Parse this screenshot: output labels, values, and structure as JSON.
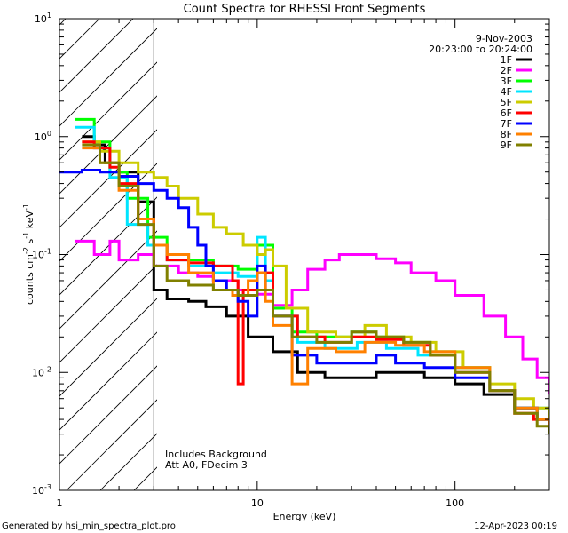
{
  "chart_data": {
    "type": "line",
    "title": "Count Spectra for RHESSI Front Segments",
    "xlabel": "Energy (keV)",
    "ylabel_parts": [
      "counts cm",
      "-2",
      " s",
      "-1",
      " keV",
      "-1"
    ],
    "xscale": "log",
    "yscale": "log",
    "xlim": [
      1,
      300
    ],
    "ylim": [
      0.001,
      10
    ],
    "x_ticks": [
      {
        "value": 1,
        "label": "1"
      },
      {
        "value": 10,
        "label": "10"
      },
      {
        "value": 100,
        "label": "100"
      }
    ],
    "y_ticks": [
      {
        "value": 0.001,
        "base": "10",
        "exp": "-3"
      },
      {
        "value": 0.01,
        "base": "10",
        "exp": "-2"
      },
      {
        "value": 0.1,
        "base": "10",
        "exp": "-1"
      },
      {
        "value": 1,
        "base": "10",
        "exp": "0"
      },
      {
        "value": 10,
        "base": "10",
        "exp": "1"
      }
    ],
    "date": "9-Nov-2003",
    "time_range": "20:23:00 to 20:24:00",
    "hatched_region_keV": [
      1,
      3
    ],
    "vertical_line_keV": 3,
    "annotations": [
      "Includes Background",
      "Att A0, FDecim 3"
    ],
    "series": [
      {
        "name": "1F",
        "color": "#000000",
        "points": [
          [
            1.3,
            1.0
          ],
          [
            1.5,
            0.85
          ],
          [
            1.7,
            0.6
          ],
          [
            2.0,
            0.5
          ],
          [
            2.5,
            0.28
          ],
          [
            3.0,
            0.05
          ],
          [
            3.5,
            0.042
          ],
          [
            4.5,
            0.04
          ],
          [
            5.5,
            0.036
          ],
          [
            7.0,
            0.03
          ],
          [
            9.0,
            0.02
          ],
          [
            12,
            0.015
          ],
          [
            16,
            0.01
          ],
          [
            22,
            0.009
          ],
          [
            30,
            0.009
          ],
          [
            40,
            0.01
          ],
          [
            50,
            0.01
          ],
          [
            70,
            0.009
          ],
          [
            100,
            0.008
          ],
          [
            140,
            0.0065
          ],
          [
            200,
            0.005
          ],
          [
            260,
            0.004
          ],
          [
            300,
            0.0035
          ]
        ]
      },
      {
        "name": "2F",
        "color": "#ff00ff",
        "points": [
          [
            1.2,
            0.13
          ],
          [
            1.5,
            0.1
          ],
          [
            1.8,
            0.13
          ],
          [
            2.0,
            0.09
          ],
          [
            2.5,
            0.1
          ],
          [
            3.0,
            0.08
          ],
          [
            4.0,
            0.07
          ],
          [
            5.0,
            0.065
          ],
          [
            6.0,
            0.06
          ],
          [
            8.0,
            0.05
          ],
          [
            10.0,
            0.046
          ],
          [
            12,
            0.037
          ],
          [
            15,
            0.05
          ],
          [
            18,
            0.075
          ],
          [
            22,
            0.09
          ],
          [
            26,
            0.1
          ],
          [
            30,
            0.1
          ],
          [
            40,
            0.092
          ],
          [
            50,
            0.085
          ],
          [
            60,
            0.07
          ],
          [
            80,
            0.06
          ],
          [
            100,
            0.045
          ],
          [
            140,
            0.03
          ],
          [
            180,
            0.02
          ],
          [
            220,
            0.013
          ],
          [
            260,
            0.009
          ],
          [
            300,
            0.0065
          ]
        ]
      },
      {
        "name": "3F",
        "color": "#00ff00",
        "points": [
          [
            1.2,
            1.4
          ],
          [
            1.5,
            0.9
          ],
          [
            1.8,
            0.5
          ],
          [
            2.2,
            0.3
          ],
          [
            2.8,
            0.14
          ],
          [
            3.5,
            0.1
          ],
          [
            4.5,
            0.09
          ],
          [
            6.0,
            0.08
          ],
          [
            8.0,
            0.075
          ],
          [
            10,
            0.12
          ],
          [
            12,
            0.035
          ],
          [
            15,
            0.022
          ],
          [
            20,
            0.02
          ],
          [
            30,
            0.022
          ],
          [
            40,
            0.02
          ],
          [
            55,
            0.018
          ],
          [
            75,
            0.015
          ],
          [
            100,
            0.011
          ],
          [
            150,
            0.007
          ],
          [
            200,
            0.005
          ],
          [
            260,
            0.004
          ],
          [
            300,
            0.0035
          ]
        ]
      },
      {
        "name": "4F",
        "color": "#00e5ff",
        "points": [
          [
            1.2,
            1.2
          ],
          [
            1.5,
            0.8
          ],
          [
            1.8,
            0.45
          ],
          [
            2.2,
            0.18
          ],
          [
            2.8,
            0.12
          ],
          [
            3.5,
            0.09
          ],
          [
            4.5,
            0.08
          ],
          [
            6.0,
            0.07
          ],
          [
            8.0,
            0.065
          ],
          [
            10,
            0.14
          ],
          [
            11,
            0.06
          ],
          [
            12,
            0.03
          ],
          [
            16,
            0.018
          ],
          [
            22,
            0.016
          ],
          [
            32,
            0.018
          ],
          [
            45,
            0.016
          ],
          [
            65,
            0.014
          ],
          [
            100,
            0.011
          ],
          [
            150,
            0.007
          ],
          [
            200,
            0.005
          ],
          [
            300,
            0.0035
          ]
        ]
      },
      {
        "name": "5F",
        "color": "#cccc00",
        "points": [
          [
            1.3,
            0.9
          ],
          [
            1.6,
            0.75
          ],
          [
            2.0,
            0.6
          ],
          [
            2.5,
            0.5
          ],
          [
            3.0,
            0.45
          ],
          [
            3.5,
            0.38
          ],
          [
            4.0,
            0.3
          ],
          [
            5.0,
            0.22
          ],
          [
            6.0,
            0.17
          ],
          [
            7.0,
            0.15
          ],
          [
            8.5,
            0.12
          ],
          [
            10,
            0.1
          ],
          [
            11,
            0.11
          ],
          [
            12,
            0.08
          ],
          [
            14,
            0.035
          ],
          [
            18,
            0.022
          ],
          [
            25,
            0.02
          ],
          [
            35,
            0.025
          ],
          [
            45,
            0.02
          ],
          [
            60,
            0.018
          ],
          [
            80,
            0.015
          ],
          [
            110,
            0.011
          ],
          [
            150,
            0.008
          ],
          [
            200,
            0.006
          ],
          [
            250,
            0.005
          ],
          [
            300,
            0.004
          ]
        ]
      },
      {
        "name": "6F",
        "color": "#ff0000",
        "points": [
          [
            1.3,
            0.9
          ],
          [
            1.5,
            0.8
          ],
          [
            1.8,
            0.55
          ],
          [
            2.0,
            0.4
          ],
          [
            2.5,
            0.2
          ],
          [
            3.0,
            0.12
          ],
          [
            3.5,
            0.09
          ],
          [
            4.5,
            0.085
          ],
          [
            6.0,
            0.08
          ],
          [
            7.5,
            0.06
          ],
          [
            8.0,
            0.008
          ],
          [
            8.5,
            0.05
          ],
          [
            10,
            0.07
          ],
          [
            12,
            0.03
          ],
          [
            16,
            0.02
          ],
          [
            22,
            0.018
          ],
          [
            30,
            0.02
          ],
          [
            40,
            0.019
          ],
          [
            55,
            0.017
          ],
          [
            75,
            0.014
          ],
          [
            100,
            0.01
          ],
          [
            150,
            0.007
          ],
          [
            200,
            0.0045
          ],
          [
            250,
            0.004
          ],
          [
            300,
            0.003
          ]
        ]
      },
      {
        "name": "7F",
        "color": "#0000ff",
        "points": [
          [
            1.0,
            0.5
          ],
          [
            1.3,
            0.52
          ],
          [
            1.6,
            0.5
          ],
          [
            2.0,
            0.46
          ],
          [
            2.5,
            0.4
          ],
          [
            3.0,
            0.35
          ],
          [
            3.5,
            0.3
          ],
          [
            4.0,
            0.25
          ],
          [
            4.5,
            0.17
          ],
          [
            5.0,
            0.12
          ],
          [
            5.5,
            0.08
          ],
          [
            6.0,
            0.06
          ],
          [
            7.0,
            0.05
          ],
          [
            8.0,
            0.04
          ],
          [
            9.0,
            0.03
          ],
          [
            10,
            0.08
          ],
          [
            11,
            0.05
          ],
          [
            12,
            0.03
          ],
          [
            15,
            0.014
          ],
          [
            20,
            0.012
          ],
          [
            30,
            0.012
          ],
          [
            40,
            0.014
          ],
          [
            50,
            0.012
          ],
          [
            70,
            0.011
          ],
          [
            100,
            0.009
          ],
          [
            150,
            0.007
          ],
          [
            200,
            0.005
          ],
          [
            260,
            0.004
          ],
          [
            300,
            0.003
          ]
        ]
      },
      {
        "name": "8F",
        "color": "#ff8000",
        "points": [
          [
            1.3,
            0.8
          ],
          [
            1.6,
            0.6
          ],
          [
            2.0,
            0.35
          ],
          [
            2.5,
            0.2
          ],
          [
            3.0,
            0.12
          ],
          [
            3.5,
            0.1
          ],
          [
            4.5,
            0.07
          ],
          [
            6.0,
            0.05
          ],
          [
            7.5,
            0.045
          ],
          [
            9.0,
            0.06
          ],
          [
            10,
            0.07
          ],
          [
            11,
            0.04
          ],
          [
            12,
            0.025
          ],
          [
            15,
            0.008
          ],
          [
            18,
            0.016
          ],
          [
            25,
            0.015
          ],
          [
            35,
            0.018
          ],
          [
            50,
            0.017
          ],
          [
            70,
            0.015
          ],
          [
            100,
            0.011
          ],
          [
            150,
            0.007
          ],
          [
            200,
            0.005
          ],
          [
            260,
            0.004
          ],
          [
            300,
            0.003
          ]
        ]
      },
      {
        "name": "9F",
        "color": "#808000",
        "points": [
          [
            1.3,
            0.85
          ],
          [
            1.6,
            0.6
          ],
          [
            2.0,
            0.38
          ],
          [
            2.5,
            0.18
          ],
          [
            3.0,
            0.08
          ],
          [
            3.5,
            0.06
          ],
          [
            4.5,
            0.055
          ],
          [
            6.0,
            0.05
          ],
          [
            8.0,
            0.045
          ],
          [
            10,
            0.05
          ],
          [
            12,
            0.03
          ],
          [
            15,
            0.02
          ],
          [
            20,
            0.018
          ],
          [
            30,
            0.022
          ],
          [
            40,
            0.02
          ],
          [
            55,
            0.018
          ],
          [
            75,
            0.014
          ],
          [
            100,
            0.01
          ],
          [
            150,
            0.007
          ],
          [
            200,
            0.0045
          ],
          [
            260,
            0.0035
          ],
          [
            300,
            0.003
          ]
        ]
      }
    ]
  },
  "footer": {
    "left": "Generated by hsi_min_spectra_plot.pro",
    "right": "12-Apr-2023 00:19"
  }
}
